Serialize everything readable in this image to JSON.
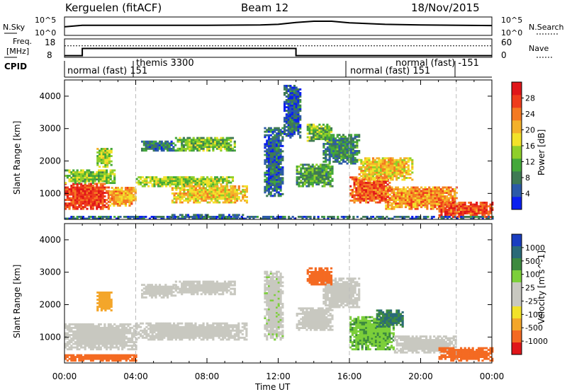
{
  "header": {
    "radar": "Kerguelen (fitACF)",
    "beam": "Beam 12",
    "date": "18/Nov/2015"
  },
  "noise_panel": {
    "left_label": "N.Sky",
    "right_label": "N.Search",
    "left_ticks": [
      "10^5",
      "10^0"
    ],
    "right_ticks": [
      "10^5",
      "10^0"
    ]
  },
  "freq_panel": {
    "left_label_1": "Freq.",
    "left_label_2": "[MHz]",
    "right_label": "Nave",
    "left_ticks": [
      "18",
      "8"
    ],
    "right_ticks": [
      "60",
      "0"
    ]
  },
  "cpid": {
    "label": "CPID",
    "segments": [
      {
        "text": "normal (fast) 151"
      },
      {
        "text": "themis 3300"
      },
      {
        "text": "normal (fast) -151"
      },
      {
        "text": "normal (fast) 151"
      }
    ]
  },
  "axis": {
    "xlabel": "Time UT",
    "xticks": [
      "00:00",
      "04:00",
      "08:00",
      "12:00",
      "16:00",
      "20:00",
      "00:00"
    ],
    "ylabel": "Slant Range [km]",
    "yticks": [
      "1000",
      "2000",
      "3000",
      "4000"
    ]
  },
  "power_colorbar": {
    "label": "Power [dB]",
    "ticks": [
      "4",
      "8",
      "12",
      "16",
      "20",
      "24",
      "28"
    ],
    "colors": [
      "#0b1ff0",
      "#2c5aa8",
      "#3f7a54",
      "#44a83a",
      "#8fcf2a",
      "#f2e22a",
      "#f4b12a",
      "#f47a22",
      "#ef3c1c",
      "#e0161a"
    ]
  },
  "velocity_colorbar": {
    "label": "Velocity [m s^-1]",
    "ticks": [
      "1000",
      "500",
      "100",
      "25",
      "-25",
      "-100",
      "-500",
      "-1000"
    ],
    "colors": [
      "#1a3ec0",
      "#2b6a78",
      "#3d8a3f",
      "#7ccf3a",
      "#c8c8c0",
      "#c8c8c0",
      "#f2e22a",
      "#f4a62a",
      "#f46a22",
      "#e0161a"
    ]
  },
  "chart_data": {
    "type": "heatmap",
    "x_unit": "hours UT",
    "xlim": [
      0,
      24
    ],
    "ylim": [
      200,
      4500
    ],
    "vertical_markers_hours": [
      4,
      16,
      22
    ],
    "cpid_boundaries_hours": [
      0,
      3.6,
      15.8,
      22
    ],
    "noise_sky_log10": [
      [
        0,
        2.3
      ],
      [
        1,
        2.8
      ],
      [
        4,
        2.8
      ],
      [
        8,
        2.8
      ],
      [
        11,
        2.9
      ],
      [
        12,
        3.1
      ],
      [
        13,
        3.7
      ],
      [
        14,
        4.1
      ],
      [
        15,
        4.1
      ],
      [
        16,
        3.6
      ],
      [
        18,
        3.1
      ],
      [
        20,
        2.9
      ],
      [
        24,
        2.7
      ]
    ],
    "frequency_mhz": [
      [
        0,
        8.6
      ],
      [
        1,
        8.6
      ],
      [
        1,
        12.8
      ],
      [
        13,
        12.8
      ],
      [
        13,
        8.6
      ],
      [
        24,
        8.6
      ]
    ],
    "nave": [
      [
        0,
        38
      ],
      [
        24,
        38
      ]
    ],
    "power_blobs": [
      {
        "t0": 0.0,
        "t1": 2.5,
        "r0": 500,
        "r1": 1300,
        "v": 26
      },
      {
        "t0": 2.5,
        "t1": 4.0,
        "r0": 600,
        "r1": 1200,
        "v": 20
      },
      {
        "t0": 0.0,
        "t1": 2.8,
        "r0": 1300,
        "r1": 1700,
        "v": 13
      },
      {
        "t0": 1.8,
        "t1": 2.6,
        "r0": 1800,
        "r1": 2400,
        "v": 14
      },
      {
        "t0": 4.0,
        "t1": 9.5,
        "r0": 1200,
        "r1": 1500,
        "v": 14
      },
      {
        "t0": 6.0,
        "t1": 10.2,
        "r0": 700,
        "r1": 1200,
        "v": 18
      },
      {
        "t0": 4.3,
        "t1": 6.2,
        "r0": 2300,
        "r1": 2600,
        "v": 7
      },
      {
        "t0": 6.2,
        "t1": 9.5,
        "r0": 2300,
        "r1": 2700,
        "v": 12
      },
      {
        "t0": 6.0,
        "t1": 10.0,
        "r0": 200,
        "r1": 320,
        "v": 5
      },
      {
        "t0": 11.2,
        "t1": 12.2,
        "r0": 900,
        "r1": 3000,
        "v": 6
      },
      {
        "t0": 12.3,
        "t1": 13.2,
        "r0": 2700,
        "r1": 4300,
        "v": 5
      },
      {
        "t0": 13.0,
        "t1": 15.0,
        "r0": 1200,
        "r1": 1900,
        "v": 10
      },
      {
        "t0": 14.5,
        "t1": 16.5,
        "r0": 1900,
        "r1": 2800,
        "v": 8
      },
      {
        "t0": 13.6,
        "t1": 15.0,
        "r0": 2600,
        "r1": 3100,
        "v": 12
      },
      {
        "t0": 16.0,
        "t1": 18.2,
        "r0": 700,
        "r1": 1500,
        "v": 24
      },
      {
        "t0": 16.5,
        "t1": 19.5,
        "r0": 1400,
        "r1": 2100,
        "v": 18
      },
      {
        "t0": 18.0,
        "t1": 22.0,
        "r0": 500,
        "r1": 1200,
        "v": 21
      },
      {
        "t0": 21.0,
        "t1": 24.0,
        "r0": 250,
        "r1": 700,
        "v": 25
      },
      {
        "t0": 0.0,
        "t1": 24.0,
        "r0": 200,
        "r1": 260,
        "v": 6
      }
    ],
    "velocity_blobs": [
      {
        "t0": 0.0,
        "t1": 4.0,
        "r0": 600,
        "r1": 1400,
        "v": 0
      },
      {
        "t0": 4.0,
        "t1": 10.2,
        "r0": 900,
        "r1": 1400,
        "v": 0
      },
      {
        "t0": 6.2,
        "t1": 9.5,
        "r0": 2300,
        "r1": 2700,
        "v": 0
      },
      {
        "t0": 4.3,
        "t1": 6.2,
        "r0": 2200,
        "r1": 2600,
        "v": 0
      },
      {
        "t0": 1.8,
        "t1": 2.6,
        "r0": 1800,
        "r1": 2400,
        "v": -80
      },
      {
        "t0": 11.2,
        "t1": 12.2,
        "r0": 900,
        "r1": 3000,
        "v": 10
      },
      {
        "t0": 13.0,
        "t1": 15.0,
        "r0": 1200,
        "r1": 1900,
        "v": 0
      },
      {
        "t0": 14.5,
        "t1": 16.5,
        "r0": 1900,
        "r1": 2800,
        "v": 0
      },
      {
        "t0": 13.6,
        "t1": 15.0,
        "r0": 2600,
        "r1": 3100,
        "v": -150
      },
      {
        "t0": 16.0,
        "t1": 18.5,
        "r0": 600,
        "r1": 1600,
        "v": 90
      },
      {
        "t0": 17.5,
        "t1": 19.0,
        "r0": 1300,
        "r1": 1800,
        "v": 300
      },
      {
        "t0": 18.5,
        "t1": 22.0,
        "r0": 500,
        "r1": 1000,
        "v": 0
      },
      {
        "t0": 21.0,
        "t1": 24.0,
        "r0": 250,
        "r1": 650,
        "v": -150
      },
      {
        "t0": 0.0,
        "t1": 4.0,
        "r0": 250,
        "r1": 450,
        "v": -120
      }
    ]
  }
}
